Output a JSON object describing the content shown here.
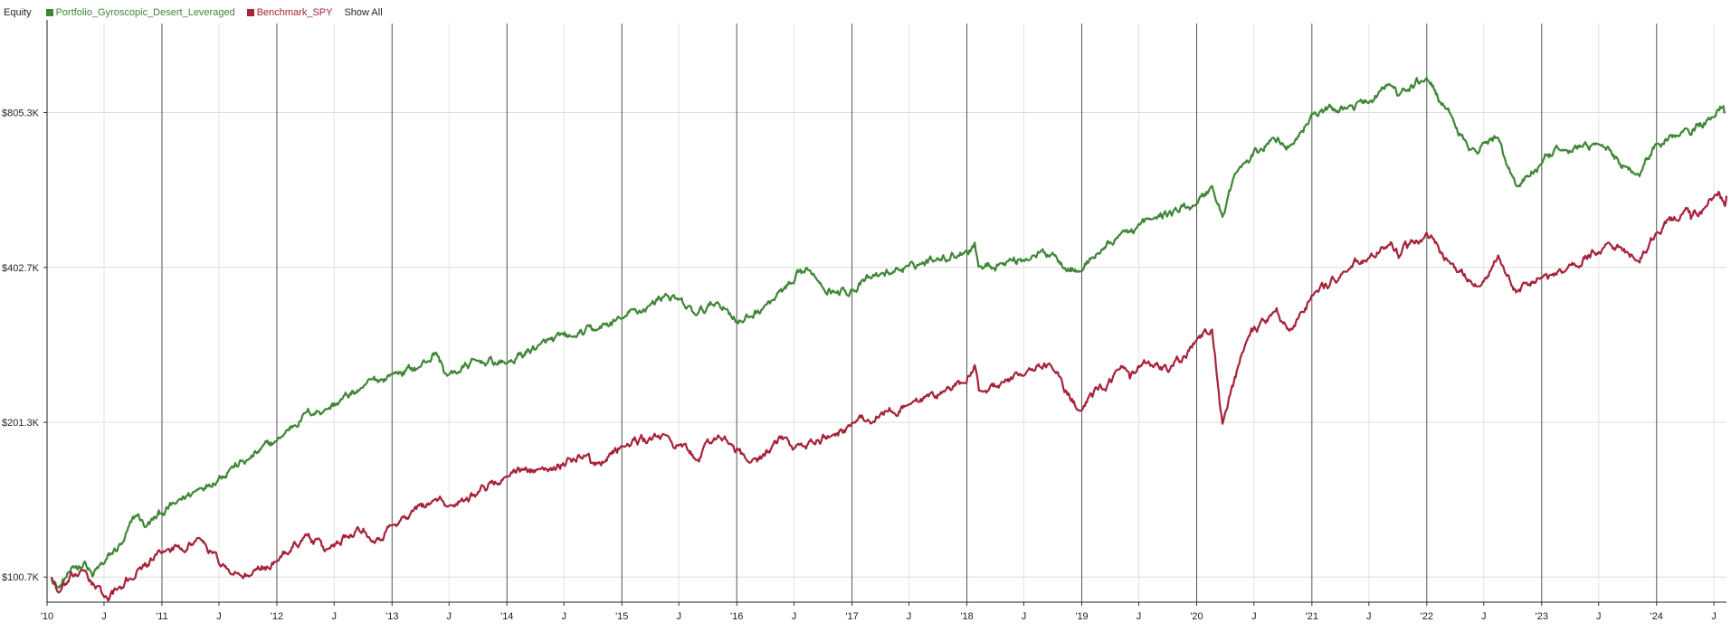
{
  "legend": {
    "title": "Equity",
    "show_all": "Show All"
  },
  "chart_data": {
    "type": "line",
    "title": "Equity",
    "y_scale": "log",
    "ylim": [
      90000,
      1200000
    ],
    "xlim": [
      "2010-01-01",
      "2024-08-10"
    ],
    "grid": true,
    "legend_position": "top-left",
    "y_ticks": [
      {
        "value": 100700,
        "label": "$100.7K"
      },
      {
        "value": 201300,
        "label": "$201.3K"
      },
      {
        "value": 402700,
        "label": "$402.7K"
      },
      {
        "value": 805300,
        "label": "$805.3K"
      }
    ],
    "x_ticks": [
      {
        "date": "2010-01-01",
        "label": "'10"
      },
      {
        "date": "2010-07-01",
        "label": "J"
      },
      {
        "date": "2011-01-01",
        "label": "'11"
      },
      {
        "date": "2011-07-01",
        "label": "J"
      },
      {
        "date": "2012-01-01",
        "label": "'12"
      },
      {
        "date": "2012-07-01",
        "label": "J"
      },
      {
        "date": "2013-01-01",
        "label": "'13"
      },
      {
        "date": "2013-07-01",
        "label": "J"
      },
      {
        "date": "2014-01-01",
        "label": "'14"
      },
      {
        "date": "2014-07-01",
        "label": "J"
      },
      {
        "date": "2015-01-01",
        "label": "'15"
      },
      {
        "date": "2015-07-01",
        "label": "J"
      },
      {
        "date": "2016-01-01",
        "label": "'16"
      },
      {
        "date": "2016-07-01",
        "label": "J"
      },
      {
        "date": "2017-01-01",
        "label": "'17"
      },
      {
        "date": "2017-07-01",
        "label": "J"
      },
      {
        "date": "2018-01-01",
        "label": "'18"
      },
      {
        "date": "2018-07-01",
        "label": "J"
      },
      {
        "date": "2019-01-01",
        "label": "'19"
      },
      {
        "date": "2019-07-01",
        "label": "J"
      },
      {
        "date": "2020-01-01",
        "label": "'20"
      },
      {
        "date": "2020-07-01",
        "label": "J"
      },
      {
        "date": "2021-01-01",
        "label": "'21"
      },
      {
        "date": "2021-07-01",
        "label": "J"
      },
      {
        "date": "2022-01-01",
        "label": "'22"
      },
      {
        "date": "2022-07-01",
        "label": "J"
      },
      {
        "date": "2023-01-01",
        "label": "'23"
      },
      {
        "date": "2023-07-01",
        "label": "J"
      },
      {
        "date": "2024-01-01",
        "label": "'24"
      },
      {
        "date": "2024-07-01",
        "label": "J"
      }
    ],
    "series": [
      {
        "name": "Portfolio_Gyroscopic_Desert_Leveraged",
        "color": "#3f8636",
        "points": [
          [
            "2010-01-15",
            100700
          ],
          [
            "2010-02-08",
            96000
          ],
          [
            "2010-03-15",
            103000
          ],
          [
            "2010-05-01",
            108000
          ],
          [
            "2010-05-25",
            101000
          ],
          [
            "2010-07-01",
            107000
          ],
          [
            "2010-09-01",
            118000
          ],
          [
            "2010-10-15",
            133000
          ],
          [
            "2010-11-10",
            126000
          ],
          [
            "2010-12-31",
            134000
          ],
          [
            "2011-02-15",
            140000
          ],
          [
            "2011-05-01",
            150000
          ],
          [
            "2011-08-10",
            165000
          ],
          [
            "2011-09-30",
            170000
          ],
          [
            "2011-12-31",
            185000
          ],
          [
            "2012-03-31",
            210000
          ],
          [
            "2012-06-01",
            213000
          ],
          [
            "2012-09-30",
            235000
          ],
          [
            "2012-12-31",
            250000
          ],
          [
            "2013-03-31",
            258000
          ],
          [
            "2013-05-20",
            275000
          ],
          [
            "2013-06-25",
            248000
          ],
          [
            "2013-09-30",
            265000
          ],
          [
            "2013-12-31",
            262000
          ],
          [
            "2014-04-15",
            285000
          ],
          [
            "2014-07-31",
            295000
          ],
          [
            "2014-10-15",
            305000
          ],
          [
            "2014-12-31",
            320000
          ],
          [
            "2015-03-31",
            340000
          ],
          [
            "2015-05-20",
            358000
          ],
          [
            "2015-08-25",
            325000
          ],
          [
            "2015-11-01",
            345000
          ],
          [
            "2016-01-20",
            315000
          ],
          [
            "2016-03-31",
            340000
          ],
          [
            "2016-06-30",
            375000
          ],
          [
            "2016-08-15",
            398000
          ],
          [
            "2016-11-10",
            360000
          ],
          [
            "2016-12-31",
            365000
          ],
          [
            "2017-03-31",
            390000
          ],
          [
            "2017-06-30",
            405000
          ],
          [
            "2017-09-30",
            420000
          ],
          [
            "2017-12-31",
            435000
          ],
          [
            "2018-01-26",
            450000
          ],
          [
            "2018-02-09",
            405000
          ],
          [
            "2018-04-15",
            410000
          ],
          [
            "2018-07-31",
            425000
          ],
          [
            "2018-09-30",
            430000
          ],
          [
            "2018-12-24",
            395000
          ],
          [
            "2019-01-31",
            420000
          ],
          [
            "2019-04-30",
            465000
          ],
          [
            "2019-08-15",
            500000
          ],
          [
            "2019-12-31",
            535000
          ],
          [
            "2020-02-19",
            580000
          ],
          [
            "2020-03-23",
            505000
          ],
          [
            "2020-04-30",
            610000
          ],
          [
            "2020-08-31",
            720000
          ],
          [
            "2020-10-30",
            700000
          ],
          [
            "2020-12-31",
            800000
          ],
          [
            "2021-04-30",
            830000
          ],
          [
            "2021-06-30",
            840000
          ],
          [
            "2021-09-02",
            915000
          ],
          [
            "2021-10-04",
            870000
          ],
          [
            "2021-12-31",
            940000
          ],
          [
            "2022-03-01",
            820000
          ],
          [
            "2022-05-15",
            680000
          ],
          [
            "2022-08-15",
            720000
          ],
          [
            "2022-10-12",
            580000
          ],
          [
            "2022-12-31",
            640000
          ],
          [
            "2023-03-15",
            680000
          ],
          [
            "2023-06-30",
            700000
          ],
          [
            "2023-10-27",
            610000
          ],
          [
            "2023-12-31",
            700000
          ],
          [
            "2024-03-31",
            750000
          ],
          [
            "2024-06-30",
            790000
          ],
          [
            "2024-07-31",
            830000
          ],
          [
            "2024-08-05",
            810000
          ]
        ]
      },
      {
        "name": "Benchmark_SPY",
        "color": "#a5233a",
        "points": [
          [
            "2010-01-15",
            100700
          ],
          [
            "2010-02-08",
            94000
          ],
          [
            "2010-04-23",
            104000
          ],
          [
            "2010-07-02",
            92000
          ],
          [
            "2010-08-31",
            96000
          ],
          [
            "2010-10-15",
            104000
          ],
          [
            "2010-12-31",
            112000
          ],
          [
            "2011-04-29",
            120000
          ],
          [
            "2011-08-08",
            102000
          ],
          [
            "2011-10-03",
            101000
          ],
          [
            "2011-12-31",
            108000
          ],
          [
            "2012-04-02",
            122000
          ],
          [
            "2012-06-01",
            113000
          ],
          [
            "2012-09-14",
            126000
          ],
          [
            "2012-11-15",
            120000
          ],
          [
            "2012-12-31",
            127000
          ],
          [
            "2013-05-21",
            143000
          ],
          [
            "2013-06-24",
            138000
          ],
          [
            "2013-12-31",
            158000
          ],
          [
            "2014-04-11",
            163000
          ],
          [
            "2014-09-18",
            175000
          ],
          [
            "2014-10-15",
            168000
          ],
          [
            "2014-12-31",
            181000
          ],
          [
            "2015-05-21",
            190000
          ],
          [
            "2015-08-25",
            170000
          ],
          [
            "2015-11-03",
            190000
          ],
          [
            "2016-02-11",
            168000
          ],
          [
            "2016-06-08",
            188000
          ],
          [
            "2016-06-27",
            178000
          ],
          [
            "2016-10-31",
            190000
          ],
          [
            "2016-12-31",
            200000
          ],
          [
            "2017-06-30",
            218000
          ],
          [
            "2017-12-31",
            240000
          ],
          [
            "2018-01-26",
            260000
          ],
          [
            "2018-02-08",
            232000
          ],
          [
            "2018-06-30",
            248000
          ],
          [
            "2018-09-20",
            262000
          ],
          [
            "2018-12-24",
            212000
          ],
          [
            "2019-04-30",
            255000
          ],
          [
            "2019-06-03",
            245000
          ],
          [
            "2019-07-26",
            262000
          ],
          [
            "2019-10-03",
            252000
          ],
          [
            "2019-12-31",
            290000
          ],
          [
            "2020-02-19",
            305000
          ],
          [
            "2020-03-23",
            200000
          ],
          [
            "2020-06-08",
            290000
          ],
          [
            "2020-09-02",
            330000
          ],
          [
            "2020-10-30",
            305000
          ],
          [
            "2020-12-31",
            355000
          ],
          [
            "2021-04-30",
            400000
          ],
          [
            "2021-06-30",
            420000
          ],
          [
            "2021-09-02",
            445000
          ],
          [
            "2021-10-04",
            420000
          ],
          [
            "2021-12-31",
            470000
          ],
          [
            "2022-03-08",
            415000
          ],
          [
            "2022-06-16",
            370000
          ],
          [
            "2022-08-16",
            425000
          ],
          [
            "2022-10-12",
            360000
          ],
          [
            "2022-12-31",
            385000
          ],
          [
            "2023-03-15",
            395000
          ],
          [
            "2023-07-31",
            450000
          ],
          [
            "2023-10-27",
            415000
          ],
          [
            "2023-12-31",
            470000
          ],
          [
            "2024-03-31",
            520000
          ],
          [
            "2024-04-19",
            500000
          ],
          [
            "2024-06-30",
            550000
          ],
          [
            "2024-07-16",
            565000
          ],
          [
            "2024-08-05",
            530000
          ],
          [
            "2024-08-10",
            555000
          ]
        ]
      }
    ]
  }
}
